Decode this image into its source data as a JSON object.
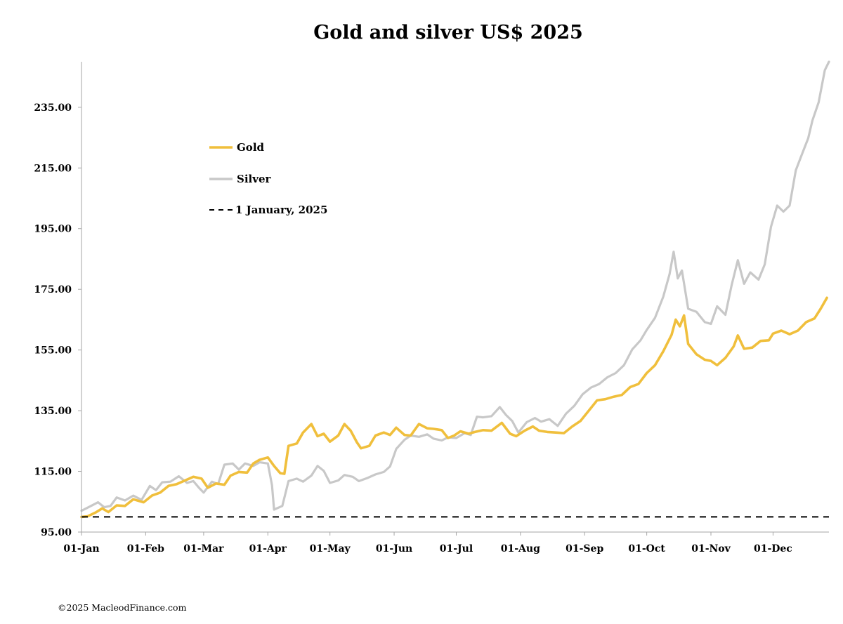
{
  "chart_data": {
    "type": "line",
    "title": "Gold and silver  US$ 2025",
    "xlabel": "",
    "ylabel": "",
    "ylim": [
      95,
      250
    ],
    "yticks": [
      "95.00",
      "115.00",
      "135.00",
      "155.00",
      "175.00",
      "195.00",
      "215.00",
      "235.00"
    ],
    "x_ticks": [
      "01-Jan",
      "01-Feb",
      "01-Mar",
      "01-Apr",
      "01-May",
      "01-Jun",
      "01-Jul",
      "01-Aug",
      "01-Sep",
      "01-Oct",
      "01-Nov",
      "01-Dec"
    ],
    "grid": false,
    "legend_position": "upper-left",
    "series": [
      {
        "name": "Gold",
        "color": "#F0BF3C",
        "style": "solid",
        "points": [
          [
            "2025-01-01",
            100.0
          ],
          [
            "2025-01-04",
            100.2
          ],
          [
            "2025-01-08",
            101.5
          ],
          [
            "2025-01-11",
            102.8
          ],
          [
            "2025-01-14",
            101.6
          ],
          [
            "2025-01-18",
            103.8
          ],
          [
            "2025-01-22",
            103.6
          ],
          [
            "2025-01-26",
            105.8
          ],
          [
            "2025-01-31",
            104.8
          ],
          [
            "2025-02-04",
            107.0
          ],
          [
            "2025-02-08",
            108.0
          ],
          [
            "2025-02-12",
            110.2
          ],
          [
            "2025-02-16",
            110.8
          ],
          [
            "2025-02-20",
            112.0
          ],
          [
            "2025-02-24",
            113.2
          ],
          [
            "2025-02-28",
            112.6
          ],
          [
            "2025-03-03",
            109.6
          ],
          [
            "2025-03-07",
            111.0
          ],
          [
            "2025-03-11",
            110.6
          ],
          [
            "2025-03-14",
            113.6
          ],
          [
            "2025-03-18",
            114.8
          ],
          [
            "2025-03-22",
            114.6
          ],
          [
            "2025-03-25",
            117.6
          ],
          [
            "2025-03-28",
            118.8
          ],
          [
            "2025-04-01",
            119.6
          ],
          [
            "2025-04-04",
            116.8
          ],
          [
            "2025-04-07",
            114.4
          ],
          [
            "2025-04-09",
            114.2
          ],
          [
            "2025-04-11",
            123.4
          ],
          [
            "2025-04-15",
            124.2
          ],
          [
            "2025-04-18",
            127.8
          ],
          [
            "2025-04-22",
            130.6
          ],
          [
            "2025-04-25",
            126.6
          ],
          [
            "2025-04-28",
            127.4
          ],
          [
            "2025-05-01",
            124.8
          ],
          [
            "2025-05-05",
            126.8
          ],
          [
            "2025-05-08",
            130.6
          ],
          [
            "2025-05-11",
            128.4
          ],
          [
            "2025-05-14",
            124.6
          ],
          [
            "2025-05-16",
            122.6
          ],
          [
            "2025-05-20",
            123.4
          ],
          [
            "2025-05-23",
            126.8
          ],
          [
            "2025-05-27",
            127.8
          ],
          [
            "2025-05-30",
            127.0
          ],
          [
            "2025-06-02",
            129.4
          ],
          [
            "2025-06-06",
            127.0
          ],
          [
            "2025-06-09",
            126.8
          ],
          [
            "2025-06-13",
            130.6
          ],
          [
            "2025-06-17",
            129.2
          ],
          [
            "2025-06-20",
            129.0
          ],
          [
            "2025-06-24",
            128.6
          ],
          [
            "2025-06-27",
            126.0
          ],
          [
            "2025-06-30",
            126.8
          ],
          [
            "2025-07-03",
            128.2
          ],
          [
            "2025-07-07",
            127.4
          ],
          [
            "2025-07-10",
            128.0
          ],
          [
            "2025-07-14",
            128.6
          ],
          [
            "2025-07-18",
            128.4
          ],
          [
            "2025-07-23",
            131.0
          ],
          [
            "2025-07-27",
            127.4
          ],
          [
            "2025-07-30",
            126.6
          ],
          [
            "2025-08-03",
            128.4
          ],
          [
            "2025-08-07",
            129.8
          ],
          [
            "2025-08-10",
            128.4
          ],
          [
            "2025-08-14",
            128.0
          ],
          [
            "2025-08-18",
            127.8
          ],
          [
            "2025-08-22",
            127.6
          ],
          [
            "2025-08-26",
            129.8
          ],
          [
            "2025-08-30",
            131.6
          ],
          [
            "2025-09-03",
            135.0
          ],
          [
            "2025-09-07",
            138.4
          ],
          [
            "2025-09-11",
            138.8
          ],
          [
            "2025-09-15",
            139.6
          ],
          [
            "2025-09-19",
            140.2
          ],
          [
            "2025-09-23",
            142.8
          ],
          [
            "2025-09-27",
            143.8
          ],
          [
            "2025-10-01",
            147.4
          ],
          [
            "2025-10-05",
            150.0
          ],
          [
            "2025-10-09",
            154.6
          ],
          [
            "2025-10-13",
            160.0
          ],
          [
            "2025-10-15",
            165.0
          ],
          [
            "2025-10-17",
            162.8
          ],
          [
            "2025-10-19",
            166.4
          ],
          [
            "2025-10-21",
            157.0
          ],
          [
            "2025-10-25",
            153.6
          ],
          [
            "2025-10-29",
            151.8
          ],
          [
            "2025-11-01",
            151.4
          ],
          [
            "2025-11-04",
            150.0
          ],
          [
            "2025-11-08",
            152.4
          ],
          [
            "2025-11-12",
            156.2
          ],
          [
            "2025-11-14",
            159.8
          ],
          [
            "2025-11-17",
            155.4
          ],
          [
            "2025-11-21",
            155.8
          ],
          [
            "2025-11-25",
            158.0
          ],
          [
            "2025-11-29",
            158.2
          ],
          [
            "2025-12-01",
            160.4
          ],
          [
            "2025-12-05",
            161.4
          ],
          [
            "2025-12-09",
            160.2
          ],
          [
            "2025-12-13",
            161.4
          ],
          [
            "2025-12-17",
            164.2
          ],
          [
            "2025-12-21",
            165.4
          ],
          [
            "2025-12-24",
            168.6
          ],
          [
            "2025-12-27",
            172.2
          ]
        ]
      },
      {
        "name": "Silver",
        "color": "#C8C8C8",
        "style": "solid",
        "points": [
          [
            "2025-01-01",
            102.0
          ],
          [
            "2025-01-05",
            103.4
          ],
          [
            "2025-01-09",
            104.8
          ],
          [
            "2025-01-12",
            103.2
          ],
          [
            "2025-01-15",
            103.6
          ],
          [
            "2025-01-18",
            106.4
          ],
          [
            "2025-01-22",
            105.4
          ],
          [
            "2025-01-26",
            107.0
          ],
          [
            "2025-01-30",
            105.6
          ],
          [
            "2025-02-03",
            110.2
          ],
          [
            "2025-02-06",
            108.8
          ],
          [
            "2025-02-09",
            111.4
          ],
          [
            "2025-02-13",
            111.6
          ],
          [
            "2025-02-17",
            113.4
          ],
          [
            "2025-02-21",
            111.2
          ],
          [
            "2025-02-24",
            111.8
          ],
          [
            "2025-02-27",
            109.4
          ],
          [
            "2025-03-01",
            108.0
          ],
          [
            "2025-03-05",
            111.6
          ],
          [
            "2025-03-08",
            110.8
          ],
          [
            "2025-03-11",
            117.2
          ],
          [
            "2025-03-15",
            117.6
          ],
          [
            "2025-03-18",
            115.6
          ],
          [
            "2025-03-21",
            117.6
          ],
          [
            "2025-03-25",
            116.8
          ],
          [
            "2025-03-28",
            118.0
          ],
          [
            "2025-04-01",
            117.6
          ],
          [
            "2025-04-03",
            110.4
          ],
          [
            "2025-04-04",
            102.4
          ],
          [
            "2025-04-08",
            103.6
          ],
          [
            "2025-04-11",
            111.8
          ],
          [
            "2025-04-15",
            112.6
          ],
          [
            "2025-04-18",
            111.6
          ],
          [
            "2025-04-22",
            113.6
          ],
          [
            "2025-04-25",
            116.8
          ],
          [
            "2025-04-28",
            115.2
          ],
          [
            "2025-05-01",
            111.2
          ],
          [
            "2025-05-05",
            112.0
          ],
          [
            "2025-05-08",
            113.8
          ],
          [
            "2025-05-12",
            113.2
          ],
          [
            "2025-05-15",
            111.8
          ],
          [
            "2025-05-19",
            112.8
          ],
          [
            "2025-05-23",
            114.0
          ],
          [
            "2025-05-27",
            114.8
          ],
          [
            "2025-05-30",
            116.6
          ],
          [
            "2025-06-02",
            122.4
          ],
          [
            "2025-06-06",
            125.4
          ],
          [
            "2025-06-09",
            126.8
          ],
          [
            "2025-06-13",
            126.4
          ],
          [
            "2025-06-17",
            127.2
          ],
          [
            "2025-06-20",
            125.8
          ],
          [
            "2025-06-24",
            125.2
          ],
          [
            "2025-06-27",
            126.2
          ],
          [
            "2025-07-01",
            126.0
          ],
          [
            "2025-07-05",
            127.6
          ],
          [
            "2025-07-08",
            127.0
          ],
          [
            "2025-07-11",
            133.0
          ],
          [
            "2025-07-14",
            132.8
          ],
          [
            "2025-07-18",
            133.2
          ],
          [
            "2025-07-22",
            136.2
          ],
          [
            "2025-07-25",
            133.6
          ],
          [
            "2025-07-28",
            131.6
          ],
          [
            "2025-07-31",
            127.8
          ],
          [
            "2025-08-04",
            131.2
          ],
          [
            "2025-08-08",
            132.6
          ],
          [
            "2025-08-11",
            131.4
          ],
          [
            "2025-08-15",
            132.2
          ],
          [
            "2025-08-19",
            130.0
          ],
          [
            "2025-08-23",
            134.0
          ],
          [
            "2025-08-27",
            136.6
          ],
          [
            "2025-08-31",
            140.4
          ],
          [
            "2025-09-04",
            142.6
          ],
          [
            "2025-09-08",
            143.8
          ],
          [
            "2025-09-12",
            146.0
          ],
          [
            "2025-09-16",
            147.4
          ],
          [
            "2025-09-20",
            150.0
          ],
          [
            "2025-09-24",
            155.2
          ],
          [
            "2025-09-28",
            158.2
          ],
          [
            "2025-10-01",
            161.6
          ],
          [
            "2025-10-05",
            165.6
          ],
          [
            "2025-10-09",
            172.6
          ],
          [
            "2025-10-12",
            180.0
          ],
          [
            "2025-10-14",
            187.4
          ],
          [
            "2025-10-16",
            178.6
          ],
          [
            "2025-10-18",
            181.2
          ],
          [
            "2025-10-21",
            168.6
          ],
          [
            "2025-10-25",
            167.6
          ],
          [
            "2025-10-29",
            164.2
          ],
          [
            "2025-11-01",
            163.6
          ],
          [
            "2025-11-04",
            169.4
          ],
          [
            "2025-11-08",
            166.6
          ],
          [
            "2025-11-11",
            176.4
          ],
          [
            "2025-11-14",
            184.6
          ],
          [
            "2025-11-17",
            176.8
          ],
          [
            "2025-11-20",
            180.6
          ],
          [
            "2025-11-24",
            178.2
          ],
          [
            "2025-11-27",
            183.2
          ],
          [
            "2025-11-30",
            195.6
          ],
          [
            "2025-12-03",
            202.6
          ],
          [
            "2025-12-06",
            200.6
          ],
          [
            "2025-12-09",
            202.6
          ],
          [
            "2025-12-12",
            214.2
          ],
          [
            "2025-12-15",
            219.6
          ],
          [
            "2025-12-18",
            224.8
          ],
          [
            "2025-12-20",
            230.6
          ],
          [
            "2025-12-23",
            236.6
          ],
          [
            "2025-12-26",
            247.2
          ],
          [
            "2025-12-28",
            250.0
          ]
        ]
      },
      {
        "name": "1 January, 2025",
        "color": "#000000",
        "style": "dashed",
        "points": [
          [
            "2025-01-01",
            100.0
          ],
          [
            "2025-12-28",
            100.0
          ]
        ]
      }
    ]
  },
  "credit": "©2025 MacleodFinance.com"
}
